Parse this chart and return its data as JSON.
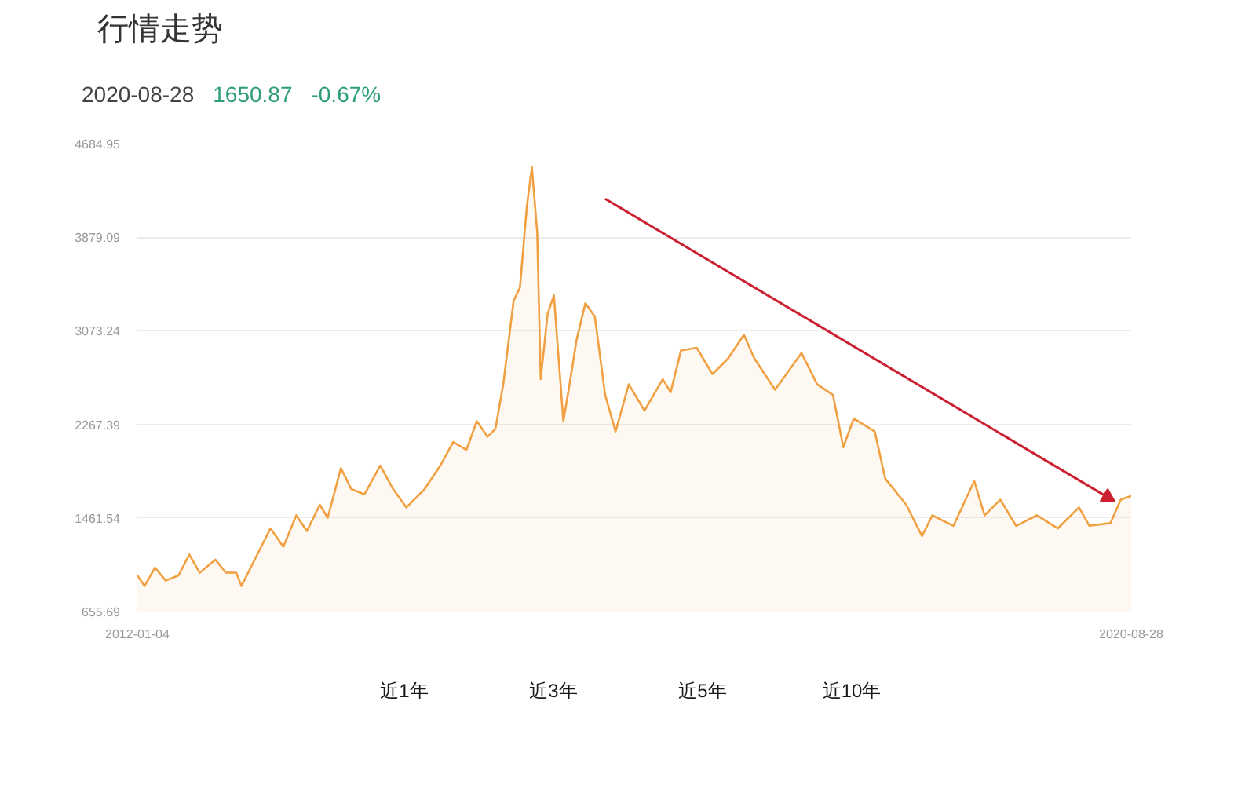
{
  "chart_data": {
    "type": "area",
    "title": "行情走势",
    "annotations": [
      "2020-08-28",
      "1650.87",
      "-0.67%",
      "近1年",
      "近3年",
      "近5年",
      "近10年"
    ],
    "xlim": [
      "2012-01-04",
      "2020-08-28"
    ],
    "xticks": [
      "2012-01-04",
      "2020-08-28"
    ],
    "ylim": [
      655.69,
      4684.95
    ],
    "yticks": [
      655.69,
      1461.54,
      2267.39,
      3073.24,
      3879.09,
      4684.95
    ],
    "grid": "y",
    "series": [
      {
        "color": "#f0a040",
        "x": [
          "2012-01-04",
          "2012-01-27",
          "2012-02-29",
          "2012-04-03",
          "2012-05-14",
          "2012-06-17",
          "2012-07-20",
          "2012-09-08",
          "2012-10-11",
          "2012-11-13",
          "2012-11-30",
          "2013-01-19",
          "2013-03-02",
          "2013-04-12",
          "2013-05-23",
          "2013-06-26",
          "2013-08-06",
          "2013-08-31",
          "2013-10-12",
          "2013-11-14",
          "2013-12-26",
          "2014-02-14",
          "2014-03-27",
          "2014-05-08",
          "2014-07-05",
          "2014-08-24",
          "2014-10-04",
          "2014-11-15",
          "2014-12-18",
          "2015-01-21",
          "2015-02-15",
          "2015-03-12",
          "2015-04-14",
          "2015-05-04",
          "2015-05-26",
          "2015-06-11",
          "2015-06-28",
          "2015-07-09",
          "2015-07-31",
          "2015-08-20",
          "2015-09-19",
          "2015-10-06",
          "2015-10-31",
          "2015-11-28",
          "2015-12-28",
          "2016-01-30",
          "2016-03-03",
          "2016-04-14",
          "2016-06-03",
          "2016-07-31",
          "2016-08-25",
          "2016-09-27",
          "2016-11-16",
          "2017-01-05",
          "2017-02-24",
          "2017-04-15",
          "2017-05-18",
          "2017-07-23",
          "2017-10-15",
          "2017-12-04",
          "2018-01-23",
          "2018-02-25",
          "2018-03-30",
          "2018-06-05",
          "2018-07-08",
          "2018-09-13",
          "2018-11-02",
          "2018-12-05",
          "2019-02-10",
          "2019-04-17",
          "2019-05-20",
          "2019-07-09",
          "2019-08-28",
          "2019-11-02",
          "2020-01-08",
          "2020-03-15",
          "2020-04-17",
          "2020-06-23",
          "2020-07-26",
          "2020-08-28"
        ],
        "values": [
          967,
          876,
          1034,
          922,
          967,
          1146,
          990,
          1102,
          990,
          990,
          876,
          1146,
          1372,
          1214,
          1484,
          1349,
          1575,
          1462,
          1890,
          1710,
          1665,
          1913,
          1710,
          1552,
          1710,
          1913,
          2116,
          2048,
          2296,
          2161,
          2228,
          2612,
          3333,
          3445,
          4144,
          4482,
          3918,
          2657,
          3220,
          3378,
          2296,
          2566,
          2995,
          3310,
          3198,
          2521,
          2206,
          2612,
          2386,
          2656,
          2544,
          2904,
          2927,
          2701,
          2836,
          3039,
          2836,
          2566,
          2882,
          2612,
          2521,
          2071,
          2318,
          2206,
          1801,
          1575,
          1305,
          1484,
          1394,
          1778,
          1484,
          1619,
          1394,
          1484,
          1372,
          1552,
          1394,
          1417,
          1619,
          1650.87
        ]
      },
      {
        "type": "line",
        "color": "#cc2030",
        "x": [
          "2016-01-30",
          "2020-06-14"
        ],
        "values": [
          4210,
          1640
        ]
      }
    ]
  }
}
